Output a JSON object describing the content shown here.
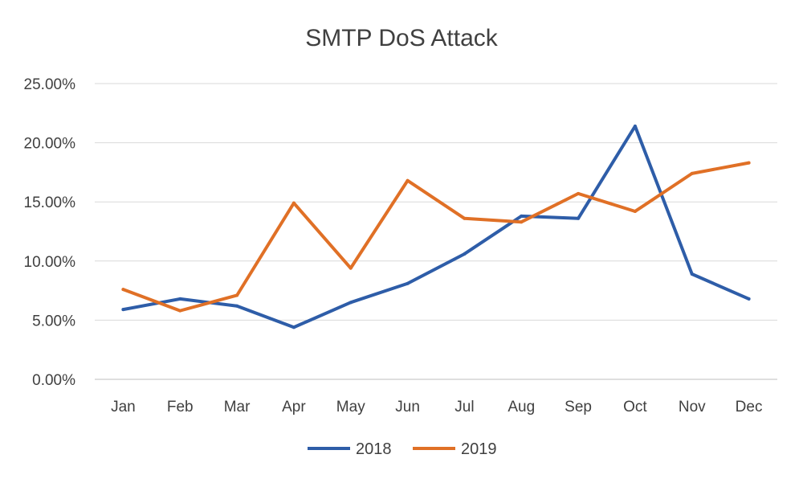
{
  "chart_data": {
    "type": "line",
    "title": "SMTP DoS Attack",
    "xlabel": "",
    "ylabel": "",
    "categories": [
      "Jan",
      "Feb",
      "Mar",
      "Apr",
      "May",
      "Jun",
      "Jul",
      "Aug",
      "Sep",
      "Oct",
      "Nov",
      "Dec"
    ],
    "yticks": [
      "0.00%",
      "5.00%",
      "10.00%",
      "15.00%",
      "20.00%",
      "25.00%"
    ],
    "ylim": [
      0,
      25
    ],
    "grid": true,
    "legend_position": "bottom",
    "series": [
      {
        "name": "2018",
        "color": "#2E5DA8",
        "values": [
          5.9,
          6.8,
          6.2,
          4.4,
          6.5,
          8.1,
          10.6,
          13.8,
          13.6,
          21.4,
          8.9,
          6.8
        ]
      },
      {
        "name": "2019",
        "color": "#E07026",
        "values": [
          7.6,
          5.8,
          7.1,
          14.9,
          9.4,
          16.8,
          13.6,
          13.3,
          15.7,
          14.2,
          17.4,
          18.3
        ]
      }
    ]
  }
}
